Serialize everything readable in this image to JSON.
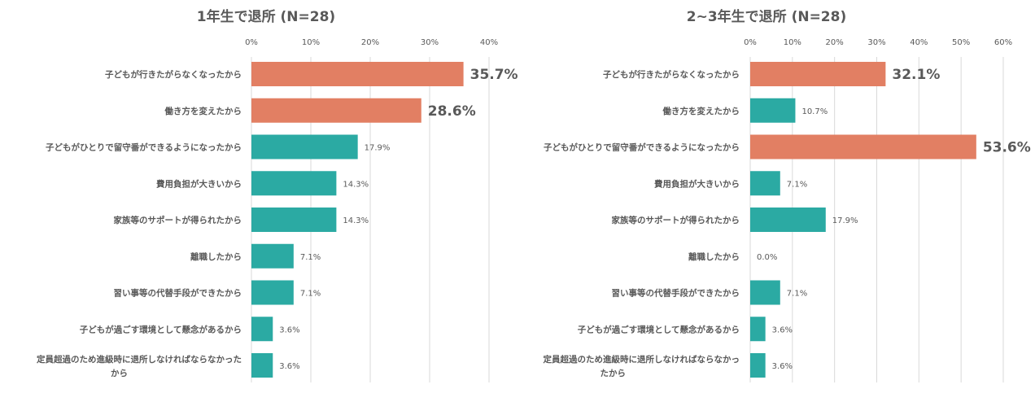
{
  "colors": {
    "highlight": "#E27F63",
    "normal": "#2BAAA3",
    "text": "#595959",
    "grid": "#D9D9D9"
  },
  "chart_data": [
    {
      "type": "bar",
      "orientation": "horizontal",
      "title": "1年生で退所 (N=28)",
      "xlim": [
        0,
        40
      ],
      "ticks": [
        0,
        10,
        20,
        30,
        40
      ],
      "tick_labels": [
        "0%",
        "10%",
        "20%",
        "30%",
        "40%"
      ],
      "grid": true,
      "categories": [
        [
          "子どもが行きたがらなくなったから"
        ],
        [
          "働き方を変えたから"
        ],
        [
          "子どもがひとりで留守番ができるようになったから"
        ],
        [
          "費用負担が大きいから"
        ],
        [
          "家族等のサポートが得られたから"
        ],
        [
          "離職したから"
        ],
        [
          "習い事等の代替手段ができたから"
        ],
        [
          "子どもが過ごす環境として懸念があるから"
        ],
        [
          "定員超過のため進級時に退所しなければならなかった",
          "から"
        ]
      ],
      "values": [
        35.7,
        28.6,
        17.9,
        14.3,
        14.3,
        7.1,
        7.1,
        3.6,
        3.6
      ],
      "value_labels": [
        "35.7%",
        "28.6%",
        "17.9%",
        "14.3%",
        "14.3%",
        "7.1%",
        "7.1%",
        "3.6%",
        "3.6%"
      ],
      "highlighted": [
        true,
        true,
        false,
        false,
        false,
        false,
        false,
        false,
        false
      ]
    },
    {
      "type": "bar",
      "orientation": "horizontal",
      "title": "2~3年生で退所 (N=28)",
      "xlim": [
        0,
        60
      ],
      "ticks": [
        0,
        10,
        20,
        30,
        40,
        50,
        60
      ],
      "tick_labels": [
        "0%",
        "10%",
        "20%",
        "30%",
        "40%",
        "50%",
        "60%"
      ],
      "grid": true,
      "categories": [
        [
          "子どもが行きたがらなくなったから"
        ],
        [
          "働き方を変えたから"
        ],
        [
          "子どもがひとりで留守番ができるようになったから"
        ],
        [
          "費用負担が大きいから"
        ],
        [
          "家族等のサポートが得られたから"
        ],
        [
          "離職したから"
        ],
        [
          "習い事等の代替手段ができたから"
        ],
        [
          "子どもが過ごす環境として懸念があるから"
        ],
        [
          "定員超過のため進級時に退所しなければならなかっ",
          "たから"
        ]
      ],
      "values": [
        32.1,
        10.7,
        53.6,
        7.1,
        17.9,
        0.0,
        7.1,
        3.6,
        3.6
      ],
      "value_labels": [
        "32.1%",
        "10.7%",
        "53.6%",
        "7.1%",
        "17.9%",
        "0.0%",
        "7.1%",
        "3.6%",
        "3.6%"
      ],
      "highlighted": [
        true,
        false,
        true,
        false,
        false,
        false,
        false,
        false,
        false
      ]
    }
  ]
}
